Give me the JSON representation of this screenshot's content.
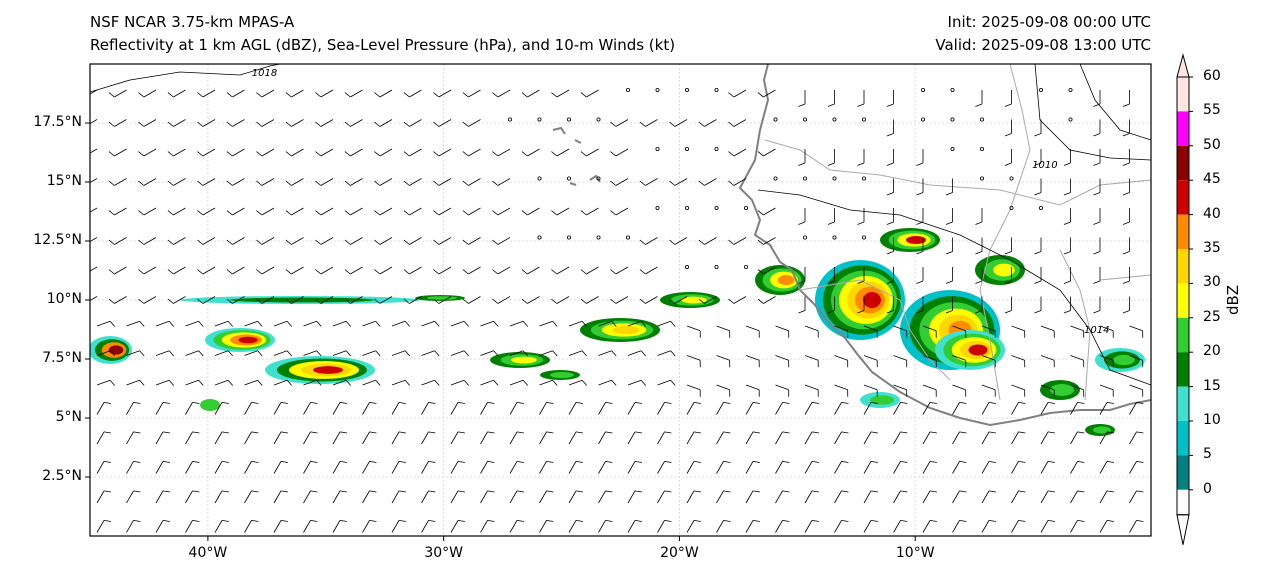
{
  "title": {
    "left_line1": "NSF NCAR 3.75-km MPAS-A",
    "left_line2": "Reflectivity at 1 km AGL (dBZ), Sea-Level Pressure (hPa), and 10-m Winds (kt)",
    "right_line1": "Init: 2025-09-08 00:00 UTC",
    "right_line2": "Valid: 2025-09-08 13:00 UTC"
  },
  "map": {
    "lon_range": [
      -45,
      0
    ],
    "lat_range": [
      0,
      20
    ],
    "x_ticks": [
      {
        "lon": -40,
        "label": "40°W"
      },
      {
        "lon": -30,
        "label": "30°W"
      },
      {
        "lon": -20,
        "label": "20°W"
      },
      {
        "lon": -10,
        "label": "10°W"
      }
    ],
    "y_ticks": [
      {
        "lat": 17.5,
        "label": "17.5°N"
      },
      {
        "lat": 15,
        "label": "15°N"
      },
      {
        "lat": 12.5,
        "label": "12.5°N"
      },
      {
        "lat": 10,
        "label": "10°N"
      },
      {
        "lat": 7.5,
        "label": "7.5°N"
      },
      {
        "lat": 5,
        "label": "5°N"
      },
      {
        "lat": 2.5,
        "label": "2.5°N"
      }
    ],
    "contour_labels": [
      {
        "text": "1018",
        "lon": -37.6,
        "lat": 19.5
      },
      {
        "text": "1010",
        "lon": -4.5,
        "lat": 15.6
      },
      {
        "text": "1014",
        "lon": -2.3,
        "lat": 8.6
      }
    ]
  },
  "colorbar": {
    "label": "dBZ",
    "ticks": [
      "0",
      "5",
      "10",
      "15",
      "20",
      "25",
      "30",
      "35",
      "40",
      "45",
      "50",
      "55",
      "60"
    ],
    "colors": [
      "#008080",
      "#00c0c8",
      "#40e0d0",
      "#008000",
      "#32cd32",
      "#ffff00",
      "#ffd700",
      "#ff8c00",
      "#cc0000",
      "#8b0000",
      "#ff00ff",
      "#ffe4e1"
    ]
  }
}
